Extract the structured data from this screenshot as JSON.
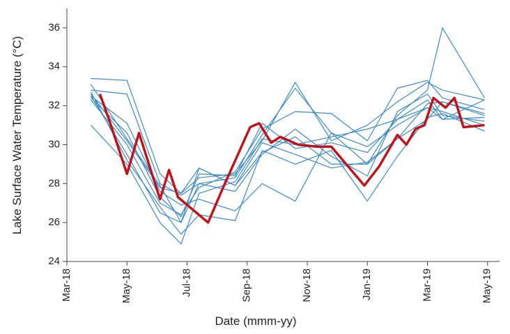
{
  "chart_data": {
    "type": "line",
    "x_label": "Date (mmm-yy)",
    "y_label": "Lake Surface Water Temperature (°C)",
    "xlim": [
      0,
      14.4
    ],
    "xticks": [
      {
        "value": 0,
        "label": "Mar-18"
      },
      {
        "value": 2,
        "label": "May-18"
      },
      {
        "value": 4,
        "label": "Jul-18"
      },
      {
        "value": 6,
        "label": "Sep-18"
      },
      {
        "value": 8,
        "label": "Nov-18"
      },
      {
        "value": 10,
        "label": "Jan-19"
      },
      {
        "value": 12,
        "label": "Mar-19"
      },
      {
        "value": 14,
        "label": "May-19"
      }
    ],
    "ylim": [
      24,
      37
    ],
    "yticks": [
      24,
      26,
      28,
      30,
      32,
      34,
      36
    ],
    "x": [
      0.8,
      2,
      3.1,
      3.8,
      4.4,
      5.6,
      6.5,
      7.6,
      8.8,
      10,
      11,
      12,
      12.5,
      13.9
    ],
    "series": [
      {
        "color": "#3a8ac9",
        "values": [
          33.4,
          33.3,
          28.5,
          27.5,
          28.3,
          28.5,
          30.2,
          33.2,
          30.2,
          31.0,
          32.2,
          33.2,
          32.8,
          32.3
        ]
      },
      {
        "color": "#3a8ac9",
        "values": [
          32.5,
          29.5,
          26.5,
          26.0,
          28.0,
          28.3,
          30.5,
          32.9,
          30.6,
          29.0,
          31.5,
          32.8,
          36.0,
          32.4
        ]
      },
      {
        "color": "#3a8ac9",
        "values": [
          32.3,
          30.0,
          27.0,
          26.4,
          27.8,
          28.6,
          30.8,
          31.7,
          31.6,
          30.2,
          32.9,
          33.3,
          32.4,
          31.8
        ]
      },
      {
        "color": "#3a8ac9",
        "values": [
          31.0,
          29.0,
          26.0,
          24.9,
          27.5,
          28.1,
          30.3,
          30.0,
          30.4,
          30.8,
          31.3,
          32.3,
          31.3,
          31.4
        ]
      },
      {
        "color": "#3a8ac9",
        "values": [
          32.6,
          30.2,
          27.8,
          27.5,
          28.8,
          27.9,
          29.6,
          30.4,
          29.0,
          29.0,
          30.3,
          31.3,
          32.2,
          31.6
        ]
      },
      {
        "color": "#3a8ac9",
        "values": [
          32.7,
          29.2,
          26.8,
          25.4,
          26.4,
          26.1,
          29.7,
          29.0,
          29.7,
          27.1,
          29.4,
          31.4,
          31.6,
          30.7
        ]
      },
      {
        "color": "#3a8ac9",
        "values": [
          32.5,
          31.1,
          27.6,
          26.9,
          27.2,
          26.6,
          28.0,
          27.1,
          30.6,
          29.9,
          31.0,
          31.9,
          31.3,
          32.3
        ]
      },
      {
        "color": "#3a8ac9",
        "values": [
          32.8,
          32.6,
          28.0,
          27.4,
          28.0,
          27.6,
          29.5,
          30.8,
          29.4,
          28.4,
          31.7,
          32.6,
          31.5,
          31.2
        ]
      },
      {
        "color": "#3a8ac9",
        "values": [
          32.4,
          30.6,
          27.3,
          26.3,
          28.5,
          28.4,
          31.1,
          29.8,
          30.1,
          29.6,
          31.3,
          31.9,
          31.7,
          31.0
        ]
      },
      {
        "color": "#3a8ac9",
        "values": [
          33.1,
          30.3,
          27.9,
          26.0,
          28.8,
          27.9,
          30.1,
          29.5,
          28.8,
          29.1,
          30.3,
          32.1,
          32.2,
          31.5
        ]
      },
      {
        "color": "#c0141c",
        "width": 3.5,
        "x": [
          1.1,
          1.4,
          2.0,
          2.4,
          3.1,
          3.4,
          3.7,
          4.7,
          5.2,
          6.1,
          6.4,
          6.8,
          7.1,
          7.7,
          8.3,
          8.8,
          9.9,
          10.4,
          11.0,
          11.3,
          11.6,
          11.9,
          12.2,
          12.6,
          12.9,
          13.2,
          13.9
        ],
        "values": [
          32.6,
          31.3,
          28.5,
          30.6,
          27.2,
          28.7,
          27.3,
          26.0,
          27.8,
          30.9,
          31.1,
          30.1,
          30.4,
          30.0,
          29.9,
          29.9,
          27.9,
          28.9,
          30.5,
          30.0,
          30.8,
          31.0,
          32.4,
          31.9,
          32.4,
          30.9,
          31.0
        ]
      }
    ]
  }
}
